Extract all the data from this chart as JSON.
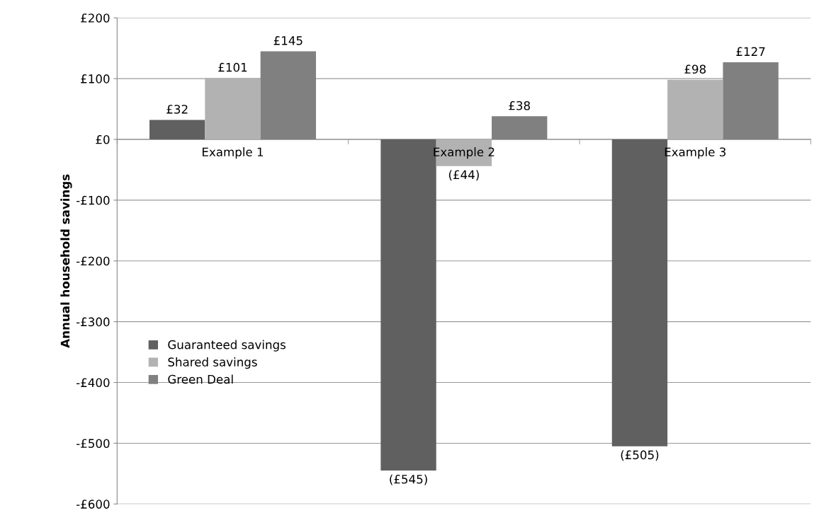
{
  "chart_data": {
    "type": "bar",
    "ylabel": "Annual household savings",
    "categories": [
      "Example 1",
      "Example 2",
      "Example 3"
    ],
    "series": [
      {
        "name": "Guaranteed savings",
        "color": "#606060",
        "values": [
          32,
          -545,
          -505
        ],
        "value_labels": [
          "£32",
          "(£545)",
          "(£505)"
        ]
      },
      {
        "name": "Shared savings",
        "color": "#b2b2b2",
        "values": [
          101,
          -44,
          98
        ],
        "value_labels": [
          "£101",
          "(£44)",
          "£98"
        ]
      },
      {
        "name": "Green Deal",
        "color": "#808080",
        "values": [
          145,
          38,
          127
        ],
        "value_labels": [
          "£145",
          "£38",
          "£127"
        ]
      }
    ],
    "ylim": [
      -600,
      200
    ],
    "yticks": [
      {
        "value": 200,
        "label": "£200"
      },
      {
        "value": 100,
        "label": "£100"
      },
      {
        "value": 0,
        "label": "£0"
      },
      {
        "value": -100,
        "label": "-£100"
      },
      {
        "value": -200,
        "label": "-£200"
      },
      {
        "value": -300,
        "label": "-£300"
      },
      {
        "value": -400,
        "label": "-£400"
      },
      {
        "value": -500,
        "label": "-£500"
      },
      {
        "value": -600,
        "label": "-£600"
      }
    ],
    "grid": "y",
    "legend": "center left"
  }
}
